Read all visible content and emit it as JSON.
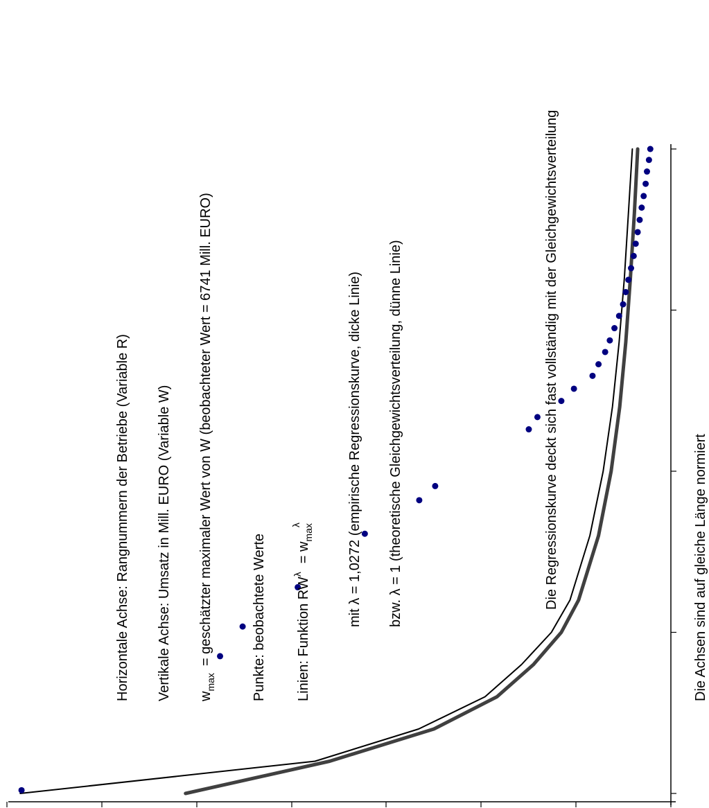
{
  "chart_data": {
    "type": "scatter",
    "rotation": "90deg-counterclockwise",
    "axes_normalized": true,
    "xlim": [
      0,
      1
    ],
    "ylim": [
      0,
      1
    ],
    "x_major_ticks": [
      0,
      0.25,
      0.5,
      0.75,
      1
    ],
    "y_major_ticks": [
      0,
      0.143,
      0.286,
      0.429,
      0.571,
      0.714,
      0.857,
      1
    ],
    "annotations": {
      "horizontal_axis": "Horizontale Achse: Rangnummern der Betriebe (Variable R)",
      "vertical_axis": "Vertikale Achse: Umsatz in Mill. EURO (Variable W)",
      "wmax_base": "w",
      "wmax_sub": "max",
      "wmax_desc": "= geschätzter maximaler Wert von W (beobachteter Wert = 6741 Mill. EURO)",
      "points": "Punkte: beobachtete Werte",
      "lines_prefix": "Linien:  Funktion RW",
      "lines_lambda_sup": "λ",
      "lines_eq": "= w",
      "lines_sub": "max",
      "lines_sup2": "λ",
      "lambda_empirical": "mit  λ = 1,0272 (empirische Regressionskurve, dicke Linie)",
      "lambda_theoretical": "bzw.  λ = 1 (theoretische Gleichgewichtsverteilung, dünne Linie)",
      "coverage_note": "Die Regressionskurve deckt sich fast vollständig mit der Gleichgewichtsverteilung",
      "normalized_note": "Die Achsen sind auf gleiche Länge normiert"
    },
    "series": [
      {
        "style": "dots",
        "color": "#000080",
        "points": [
          [
            0.005,
            0.978
          ],
          [
            0.213,
            0.679
          ],
          [
            0.259,
            0.645
          ],
          [
            0.32,
            0.562
          ],
          [
            0.403,
            0.461
          ],
          [
            0.455,
            0.379
          ],
          [
            0.477,
            0.355
          ],
          [
            0.565,
            0.214
          ],
          [
            0.584,
            0.201
          ],
          [
            0.609,
            0.165
          ],
          [
            0.628,
            0.146
          ],
          [
            0.648,
            0.118
          ],
          [
            0.666,
            0.109
          ],
          [
            0.685,
            0.099
          ],
          [
            0.703,
            0.092
          ],
          [
            0.722,
            0.085
          ],
          [
            0.741,
            0.078
          ],
          [
            0.759,
            0.072
          ],
          [
            0.778,
            0.068
          ],
          [
            0.797,
            0.064
          ],
          [
            0.815,
            0.06
          ],
          [
            0.834,
            0.056
          ],
          [
            0.853,
            0.053
          ],
          [
            0.871,
            0.05
          ],
          [
            0.89,
            0.047
          ],
          [
            0.909,
            0.044
          ],
          [
            0.927,
            0.041
          ],
          [
            0.946,
            0.038
          ],
          [
            0.965,
            0.036
          ],
          [
            0.983,
            0.033
          ],
          [
            1.0,
            0.031
          ]
        ]
      },
      {
        "style": "thin-line",
        "lambda": 1,
        "color": "#000000",
        "points": [
          [
            0.0,
            0.98
          ],
          [
            0.05,
            0.536
          ],
          [
            0.1,
            0.38
          ],
          [
            0.15,
            0.28
          ],
          [
            0.2,
            0.225
          ],
          [
            0.25,
            0.18
          ],
          [
            0.3,
            0.152
          ],
          [
            0.4,
            0.122
          ],
          [
            0.5,
            0.102
          ],
          [
            0.6,
            0.088
          ],
          [
            0.7,
            0.078
          ],
          [
            0.8,
            0.07
          ],
          [
            0.9,
            0.064
          ],
          [
            1.0,
            0.058
          ]
        ]
      },
      {
        "style": "thick-line",
        "lambda": 1.0272,
        "color": "#404040",
        "points": [
          [
            0.0,
            0.731
          ],
          [
            0.05,
            0.514
          ],
          [
            0.1,
            0.357
          ],
          [
            0.15,
            0.262
          ],
          [
            0.2,
            0.207
          ],
          [
            0.25,
            0.165
          ],
          [
            0.3,
            0.139
          ],
          [
            0.4,
            0.109
          ],
          [
            0.5,
            0.09
          ],
          [
            0.6,
            0.077
          ],
          [
            0.7,
            0.068
          ],
          [
            0.8,
            0.061
          ],
          [
            0.9,
            0.055
          ],
          [
            1.0,
            0.05
          ]
        ]
      }
    ]
  }
}
